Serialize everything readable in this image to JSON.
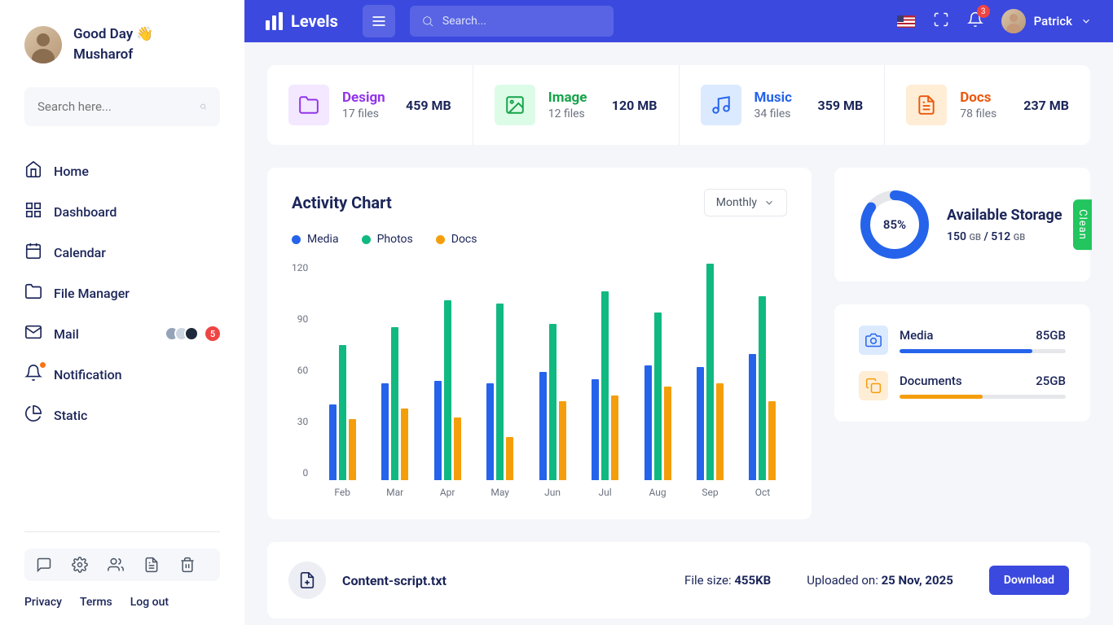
{
  "sidebar": {
    "greeting": "Good Day 👋",
    "username": "Musharof",
    "search_placeholder": "Search here...",
    "nav": [
      {
        "icon": "home",
        "label": "Home"
      },
      {
        "icon": "grid",
        "label": "Dashboard"
      },
      {
        "icon": "calendar",
        "label": "Calendar"
      },
      {
        "icon": "folder",
        "label": "File Manager"
      },
      {
        "icon": "mail",
        "label": "Mail",
        "mail_count": "5"
      },
      {
        "icon": "bell",
        "label": "Notification"
      },
      {
        "icon": "pie",
        "label": "Static"
      }
    ],
    "footer_links": [
      "Privacy",
      "Terms",
      "Log out"
    ]
  },
  "header": {
    "brand": "Levels",
    "search_placeholder": "Search...",
    "notif_count": "3",
    "user": "Patrick"
  },
  "stats": [
    {
      "title": "Design",
      "title_color": "#9333ea",
      "files": "17 files",
      "size": "459 MB",
      "icon": "folder",
      "icon_bg": "#f3e8ff",
      "icon_color": "#9333ea"
    },
    {
      "title": "Image",
      "title_color": "#16a34a",
      "files": "12 files",
      "size": "120 MB",
      "icon": "image",
      "icon_bg": "#dcfce7",
      "icon_color": "#16a34a"
    },
    {
      "title": "Music",
      "title_color": "#2563eb",
      "files": "34 files",
      "size": "359 MB",
      "icon": "music",
      "icon_bg": "#dbeafe",
      "icon_color": "#2563eb"
    },
    {
      "title": "Docs",
      "title_color": "#ea580c",
      "files": "78 files",
      "size": "237 MB",
      "icon": "file",
      "icon_bg": "#ffedd5",
      "icon_color": "#ea580c"
    }
  ],
  "chart": {
    "title": "Activity Chart",
    "dropdown": "Monthly",
    "legend": [
      {
        "label": "Media",
        "color": "#2563eb"
      },
      {
        "label": "Photos",
        "color": "#10b981"
      },
      {
        "label": "Docs",
        "color": "#f59e0b"
      }
    ],
    "ylim": 120,
    "yticks": [
      "120",
      "90",
      "60",
      "30",
      "0"
    ],
    "months": [
      "Feb",
      "Mar",
      "Apr",
      "May",
      "Jun",
      "Jul",
      "Aug",
      "Sep",
      "Oct"
    ],
    "series_colors": [
      "#2563eb",
      "#10b981",
      "#f59e0b"
    ],
    "data": [
      [
        42,
        75,
        34
      ],
      [
        54,
        85,
        40
      ],
      [
        55,
        100,
        35
      ],
      [
        54,
        98,
        24
      ],
      [
        60,
        87,
        44
      ],
      [
        56,
        105,
        47
      ],
      [
        64,
        93,
        52
      ],
      [
        63,
        120,
        54
      ],
      [
        70,
        102,
        44
      ]
    ]
  },
  "storage": {
    "percent": "85%",
    "percent_val": 85,
    "title": "Available Storage",
    "used": "150",
    "used_unit": "GB",
    "total": "512",
    "total_unit": "GB",
    "ring_color": "#2563eb",
    "ring_track": "#e5e7eb",
    "badge": "Clean"
  },
  "usage": [
    {
      "label": "Media",
      "value": "85GB",
      "pct": 80,
      "color": "#2563eb",
      "icon": "camera",
      "icon_bg": "#dbeafe"
    },
    {
      "label": "Documents",
      "value": "25GB",
      "pct": 50,
      "color": "#f59e0b",
      "icon": "copy",
      "icon_bg": "#ffedd5"
    }
  ],
  "file": {
    "name": "Content-script.txt",
    "size_label": "File size:",
    "size": "455KB",
    "date_label": "Uploaded on:",
    "date": "25 Nov, 2025",
    "button": "Download"
  }
}
